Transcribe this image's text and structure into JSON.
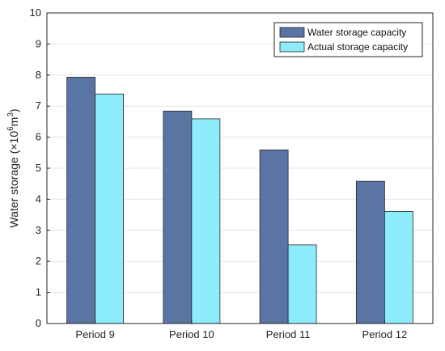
{
  "chart_data": {
    "type": "bar",
    "categories": [
      "Period 9",
      "Period 10",
      "Period 11",
      "Period 12"
    ],
    "series": [
      {
        "name": "Water storage capacity",
        "values": [
          7.93,
          6.84,
          5.59,
          4.58
        ],
        "color": "#5a75a3"
      },
      {
        "name": "Actual storage capacity",
        "values": [
          7.39,
          6.59,
          2.53,
          3.61
        ],
        "color": "#8cecfb"
      }
    ],
    "ylabel": {
      "main": "Water storage (×10",
      "exp": "6",
      "unit": "m",
      "unit_exp": "3",
      "close": ")"
    },
    "xlabel": "",
    "ylim": [
      0,
      10
    ],
    "yticks": [
      "0",
      "1",
      "2",
      "3",
      "4",
      "5",
      "6",
      "7",
      "8",
      "9",
      "10"
    ],
    "grid": "horizontal",
    "legend_position": "top-right"
  }
}
